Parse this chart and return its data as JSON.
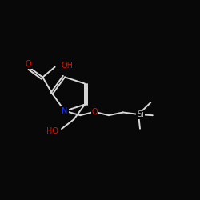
{
  "background_color": "#080808",
  "bond_color": "#d8d8d8",
  "atom_colors": {
    "O": "#dd1100",
    "N": "#2233ee",
    "Si": "#bbbbbb",
    "C": "#d8d8d8"
  }
}
